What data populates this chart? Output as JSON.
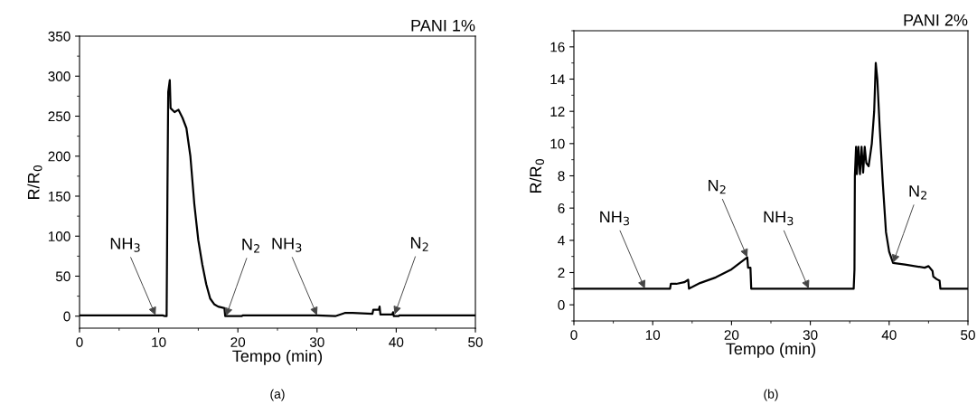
{
  "chart_data": [
    {
      "type": "line",
      "title": "PANI 1%",
      "xlabel": "Tempo (min)",
      "ylabel": "R/R$_{0}$",
      "xlim": [
        0,
        50
      ],
      "xticks": [
        0,
        10,
        20,
        30,
        40,
        50
      ],
      "ylim": [
        -15,
        350
      ],
      "yticks": [
        0,
        50,
        100,
        150,
        200,
        250,
        300,
        350
      ],
      "grid": false,
      "legend": false,
      "marker": "none",
      "line_style": "solid",
      "series": [
        {
          "color": "#000000",
          "x": [
            0,
            10.5,
            10.8,
            11.0,
            11.1,
            11.2,
            11.4,
            11.5,
            12,
            12.5,
            13,
            13.5,
            14,
            14.5,
            15,
            15.5,
            16,
            16.5,
            17,
            17.5,
            18.3,
            18.4,
            20.5,
            20.6,
            30,
            32.3,
            33.5,
            34.5,
            37,
            37.1,
            37.8,
            37.9,
            38,
            39.5,
            39.6,
            39.7,
            40.3,
            40.4,
            50
          ],
          "values": [
            1,
            1,
            0,
            0,
            150,
            280,
            295,
            260,
            255,
            258,
            248,
            235,
            200,
            140,
            95,
            65,
            40,
            22,
            15,
            12,
            10,
            0,
            0,
            1,
            1,
            0,
            4,
            4,
            3,
            8,
            8,
            12,
            2,
            2,
            5,
            0,
            0,
            1,
            1
          ]
        }
      ],
      "annotations": [
        {
          "text": "NH$_{3}$",
          "x": 9.6,
          "y": 1
        },
        {
          "text": "N$_{2}$",
          "x": 18.5,
          "y": 0
        },
        {
          "text": "NH$_{3}$",
          "x": 30,
          "y": 1
        },
        {
          "text": "N$_{2}$",
          "x": 39.8,
          "y": 2
        },
        "(a)"
      ]
    },
    {
      "type": "line",
      "title": "PANI 2%",
      "xlabel": "Tempo (min)",
      "ylabel": "R/R$_{0}$",
      "xlim": [
        0,
        50
      ],
      "xticks": [
        0,
        10,
        20,
        30,
        40,
        50
      ],
      "ylim": [
        -1,
        17
      ],
      "yticks": [
        0,
        2,
        4,
        6,
        8,
        10,
        12,
        14,
        16
      ],
      "grid": false,
      "legend": false,
      "marker": "none",
      "line_style": "solid",
      "series": [
        {
          "color": "#000000",
          "x": [
            0,
            12.2,
            12.3,
            13,
            14,
            14.5,
            14.6,
            16,
            18,
            20,
            22,
            22.1,
            22.4,
            22.5,
            35.5,
            35.6,
            35.65,
            35.8,
            35.9,
            36.1,
            36.3,
            36.5,
            36.7,
            36.9,
            37.1,
            37.4,
            37.8,
            38.1,
            38.3,
            38.5,
            38.8,
            39.2,
            39.6,
            40,
            40.5,
            42,
            44.5,
            45,
            45.5,
            45.6,
            46,
            46.4,
            46.5,
            50
          ],
          "values": [
            1,
            1,
            1.3,
            1.3,
            1.4,
            1.55,
            1.0,
            1.35,
            1.7,
            2.2,
            2.95,
            2.3,
            2.3,
            1,
            1,
            2.2,
            8,
            9.8,
            8.1,
            9.8,
            8.1,
            9.8,
            8.2,
            9.8,
            8.8,
            8.6,
            10,
            12,
            15,
            14,
            11,
            7.5,
            4.5,
            3.3,
            2.6,
            2.5,
            2.3,
            2.4,
            2.1,
            1.75,
            1.6,
            1.5,
            1,
            1
          ]
        }
      ],
      "annotations": [
        {
          "text": "NH$_{3}$",
          "x": 9,
          "y": 1
        },
        {
          "text": "N$_{2}$",
          "x": 22,
          "y": 2.95
        },
        {
          "text": "NH$_{3}$",
          "x": 29.8,
          "y": 1
        },
        {
          "text": "N$_{2}$",
          "x": 40.5,
          "y": 2.6
        },
        "(b)"
      ]
    }
  ]
}
